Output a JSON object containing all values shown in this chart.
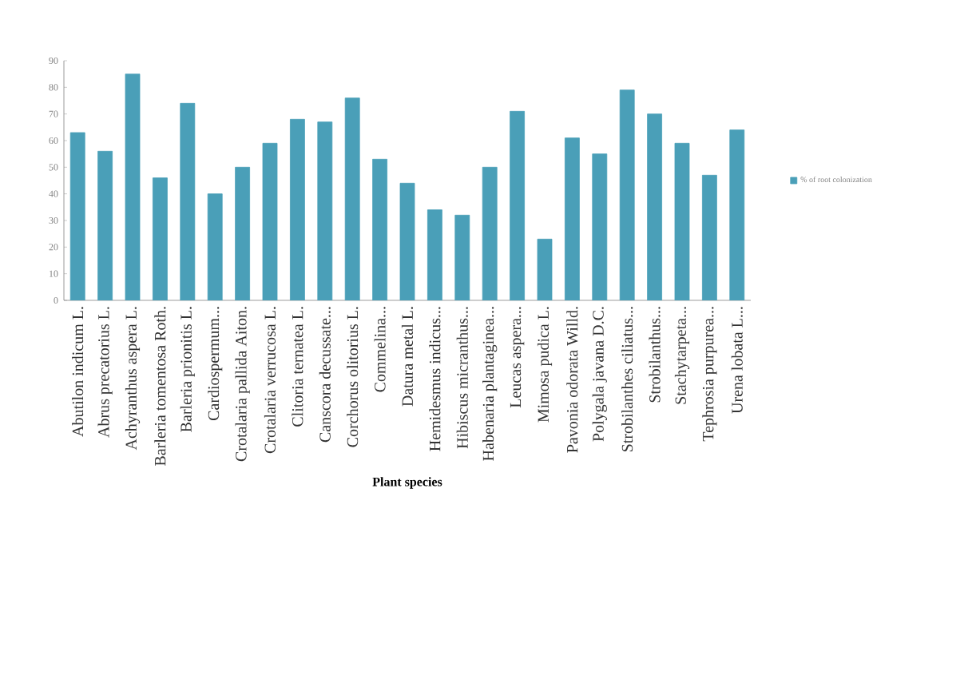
{
  "chart_data": {
    "type": "bar",
    "xlabel": "Plant species",
    "categories": [
      "Abutilon indicum  L.",
      "Abrus precatorius  L.",
      "Achyranthus aspera  L.",
      "Barleria tomentosa Roth.",
      "Barleria prionitis L.",
      "Cardiospermum...",
      "Crotalaria pallida Aiton.",
      "Crotalaria verrucosa  L.",
      "Clitoria ternatea  L.",
      "Canscora decussate...",
      "Corchorus olitorius  L.",
      "Commelina...",
      "Datura metal L.",
      "Hemidesmus indicus...",
      "Hibiscus micranthus...",
      "Habenaria plantaginea...",
      "Leucas aspera...",
      "Mimosa pudica  L.",
      "Pavonia odorata Willd.",
      "Polygala javana  D.C.",
      "Strobilanthes ciliatus...",
      "Strobilanthus...",
      "Stachytarpeta...",
      "Tephrosia purpurea...",
      "Urena lobata L..."
    ],
    "series": [
      {
        "name": "% of root colonization",
        "color": "#4a9fb8",
        "values": [
          63,
          56,
          85,
          46,
          74,
          40,
          50,
          59,
          68,
          67,
          76,
          53,
          44,
          34,
          32,
          50,
          71,
          23,
          61,
          55,
          79,
          70,
          59,
          47,
          64
        ]
      }
    ],
    "ylim": [
      0,
      90
    ],
    "yticks": [
      0,
      10,
      20,
      30,
      40,
      50,
      60,
      70,
      80,
      90
    ],
    "grid": false,
    "legend": "right"
  }
}
